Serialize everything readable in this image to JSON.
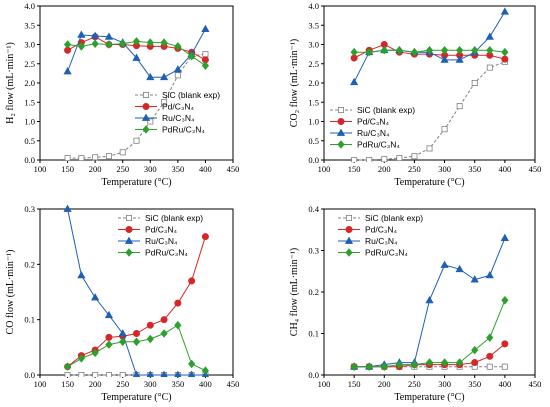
{
  "chart_data": [
    {
      "type": "line",
      "xlabel": "Temperature (°C)",
      "ylabel": "H₂ flow (mL·min⁻¹)",
      "xlim": [
        100,
        450
      ],
      "ylim": [
        0.0,
        4.0
      ],
      "xticks": [
        100,
        150,
        200,
        250,
        300,
        350,
        400,
        450
      ],
      "yticks": [
        "0.0",
        "0.5",
        "1.0",
        "1.5",
        "2.0",
        "2.5",
        "3.0",
        "3.5",
        "4.0"
      ],
      "legend": "bottom-right",
      "series": [
        {
          "name": "SiC (blank exp)",
          "color": "#808080",
          "marker": "square-open",
          "dashed": true,
          "x": [
            150,
            175,
            200,
            225,
            250,
            275,
            300,
            325,
            350,
            375,
            400
          ],
          "y": [
            0.05,
            0.05,
            0.07,
            0.1,
            0.2,
            0.5,
            1.0,
            1.5,
            2.2,
            2.7,
            2.75
          ]
        },
        {
          "name": "Pd/C₃N₄",
          "color": "#d62728",
          "marker": "circle",
          "x": [
            150,
            175,
            200,
            225,
            250,
            275,
            300,
            325,
            350,
            375,
            400
          ],
          "y": [
            2.85,
            3.05,
            3.2,
            3.0,
            3.0,
            2.97,
            2.95,
            2.95,
            2.9,
            2.8,
            2.6
          ]
        },
        {
          "name": "Ru/C₃N₄",
          "color": "#1f5fb4",
          "marker": "triangle",
          "x": [
            150,
            175,
            200,
            225,
            250,
            275,
            300,
            325,
            350,
            375,
            400
          ],
          "y": [
            2.3,
            3.25,
            3.22,
            3.2,
            3.05,
            2.65,
            2.15,
            2.15,
            2.35,
            2.75,
            3.4
          ]
        },
        {
          "name": "PdRu/C₃N₄",
          "color": "#2ca02c",
          "marker": "diamond",
          "x": [
            150,
            175,
            200,
            225,
            250,
            275,
            300,
            325,
            350,
            375,
            400
          ],
          "y": [
            3.0,
            2.95,
            3.02,
            3.0,
            3.02,
            3.08,
            3.05,
            3.05,
            2.95,
            2.7,
            2.45
          ]
        }
      ]
    },
    {
      "type": "line",
      "xlabel": "Temperature (°C)",
      "ylabel": "CO₂ flow (mL·min⁻¹)",
      "xlim": [
        100,
        450
      ],
      "ylim": [
        0.0,
        4.0
      ],
      "xticks": [
        100,
        150,
        200,
        250,
        300,
        350,
        400,
        450
      ],
      "yticks": [
        "0.0",
        "0.5",
        "1.0",
        "1.5",
        "2.0",
        "2.5",
        "3.0",
        "3.5",
        "4.0"
      ],
      "legend": "bottom-left",
      "series": [
        {
          "name": "SiC (blank exp)",
          "color": "#808080",
          "marker": "square-open",
          "dashed": true,
          "x": [
            150,
            175,
            200,
            225,
            250,
            275,
            300,
            325,
            350,
            375,
            400
          ],
          "y": [
            0.0,
            0.0,
            0.02,
            0.05,
            0.1,
            0.3,
            0.8,
            1.4,
            2.0,
            2.4,
            2.55
          ]
        },
        {
          "name": "Pd/C₃N₄",
          "color": "#d62728",
          "marker": "circle",
          "x": [
            150,
            175,
            200,
            225,
            250,
            275,
            300,
            325,
            350,
            375,
            400
          ],
          "y": [
            2.65,
            2.85,
            3.0,
            2.8,
            2.75,
            2.75,
            2.72,
            2.72,
            2.72,
            2.72,
            2.62
          ]
        },
        {
          "name": "Ru/C₃N₄",
          "color": "#1f5fb4",
          "marker": "triangle",
          "x": [
            150,
            175,
            200,
            225,
            250,
            275,
            300,
            325,
            350,
            375,
            400
          ],
          "y": [
            2.02,
            2.8,
            2.85,
            2.85,
            2.8,
            2.8,
            2.6,
            2.6,
            2.8,
            3.2,
            3.85
          ]
        },
        {
          "name": "PdRu/C₃N₄",
          "color": "#2ca02c",
          "marker": "diamond",
          "x": [
            150,
            175,
            200,
            225,
            250,
            275,
            300,
            325,
            350,
            375,
            400
          ],
          "y": [
            2.8,
            2.8,
            2.85,
            2.85,
            2.8,
            2.85,
            2.85,
            2.85,
            2.85,
            2.85,
            2.8
          ]
        }
      ]
    },
    {
      "type": "line",
      "xlabel": "Temperature (°C)",
      "ylabel": "CO flow (mL·min⁻¹)",
      "xlim": [
        100,
        450
      ],
      "ylim": [
        0.0,
        0.3
      ],
      "xticks": [
        100,
        150,
        200,
        250,
        300,
        350,
        400,
        450
      ],
      "yticks": [
        "0.0",
        "0.1",
        "0.2",
        "0.3"
      ],
      "legend": "top-right",
      "series": [
        {
          "name": "SiC (blank exp)",
          "color": "#808080",
          "marker": "square-open",
          "dashed": true,
          "x": [
            150,
            175,
            200,
            225,
            250,
            275,
            300,
            325,
            350,
            375,
            400
          ],
          "y": [
            0.0,
            0.0,
            0.0,
            0.0,
            0.0,
            0.0,
            0.0,
            0.0,
            0.0,
            0.0,
            0.0
          ]
        },
        {
          "name": "Pd/C₃N₄",
          "color": "#d62728",
          "marker": "circle",
          "x": [
            150,
            175,
            200,
            225,
            250,
            275,
            300,
            325,
            350,
            375,
            400
          ],
          "y": [
            0.015,
            0.035,
            0.045,
            0.068,
            0.07,
            0.075,
            0.09,
            0.1,
            0.13,
            0.17,
            0.25
          ]
        },
        {
          "name": "Ru/C₃N₄",
          "color": "#1f5fb4",
          "marker": "triangle",
          "x": [
            150,
            175,
            200,
            225,
            250,
            275,
            300,
            325,
            350,
            375,
            400
          ],
          "y": [
            0.3,
            0.18,
            0.14,
            0.108,
            0.075,
            0.0,
            0.0,
            0.0,
            0.0,
            0.0,
            0.0
          ]
        },
        {
          "name": "PdRu/C₃N₄",
          "color": "#2ca02c",
          "marker": "diamond",
          "x": [
            150,
            175,
            200,
            225,
            250,
            275,
            300,
            325,
            350,
            375,
            400
          ],
          "y": [
            0.015,
            0.03,
            0.04,
            0.055,
            0.06,
            0.06,
            0.065,
            0.075,
            0.09,
            0.02,
            0.008
          ]
        }
      ]
    },
    {
      "type": "line",
      "xlabel": "Temperature (°C)",
      "ylabel": "CH₄ flow (mL·min⁻¹)",
      "xlim": [
        100,
        450
      ],
      "ylim": [
        0.0,
        0.4
      ],
      "xticks": [
        100,
        150,
        200,
        250,
        300,
        350,
        400,
        450
      ],
      "yticks": [
        "0.0",
        "0.1",
        "0.2",
        "0.3",
        "0.4"
      ],
      "legend": "top-left",
      "series": [
        {
          "name": "SiC (blank exp)",
          "color": "#808080",
          "marker": "square-open",
          "dashed": true,
          "x": [
            150,
            175,
            200,
            225,
            250,
            275,
            300,
            325,
            350,
            375,
            400
          ],
          "y": [
            0.02,
            0.02,
            0.02,
            0.02,
            0.02,
            0.02,
            0.02,
            0.02,
            0.02,
            0.02,
            0.02
          ]
        },
        {
          "name": "Pd/C₃N₄",
          "color": "#d62728",
          "marker": "circle",
          "x": [
            150,
            175,
            200,
            225,
            250,
            275,
            300,
            325,
            350,
            375,
            400
          ],
          "y": [
            0.02,
            0.02,
            0.02,
            0.02,
            0.025,
            0.025,
            0.025,
            0.025,
            0.03,
            0.045,
            0.075
          ]
        },
        {
          "name": "Ru/C₃N₄",
          "color": "#1f5fb4",
          "marker": "triangle",
          "x": [
            150,
            175,
            200,
            225,
            250,
            275,
            300,
            325,
            350,
            375,
            400
          ],
          "y": [
            0.02,
            0.02,
            0.025,
            0.03,
            0.03,
            0.18,
            0.265,
            0.255,
            0.23,
            0.24,
            0.33
          ]
        },
        {
          "name": "PdRu/C₃N₄",
          "color": "#2ca02c",
          "marker": "diamond",
          "x": [
            150,
            175,
            200,
            225,
            250,
            275,
            300,
            325,
            350,
            375,
            400
          ],
          "y": [
            0.02,
            0.02,
            0.02,
            0.025,
            0.025,
            0.03,
            0.03,
            0.03,
            0.06,
            0.09,
            0.18
          ]
        }
      ]
    }
  ]
}
